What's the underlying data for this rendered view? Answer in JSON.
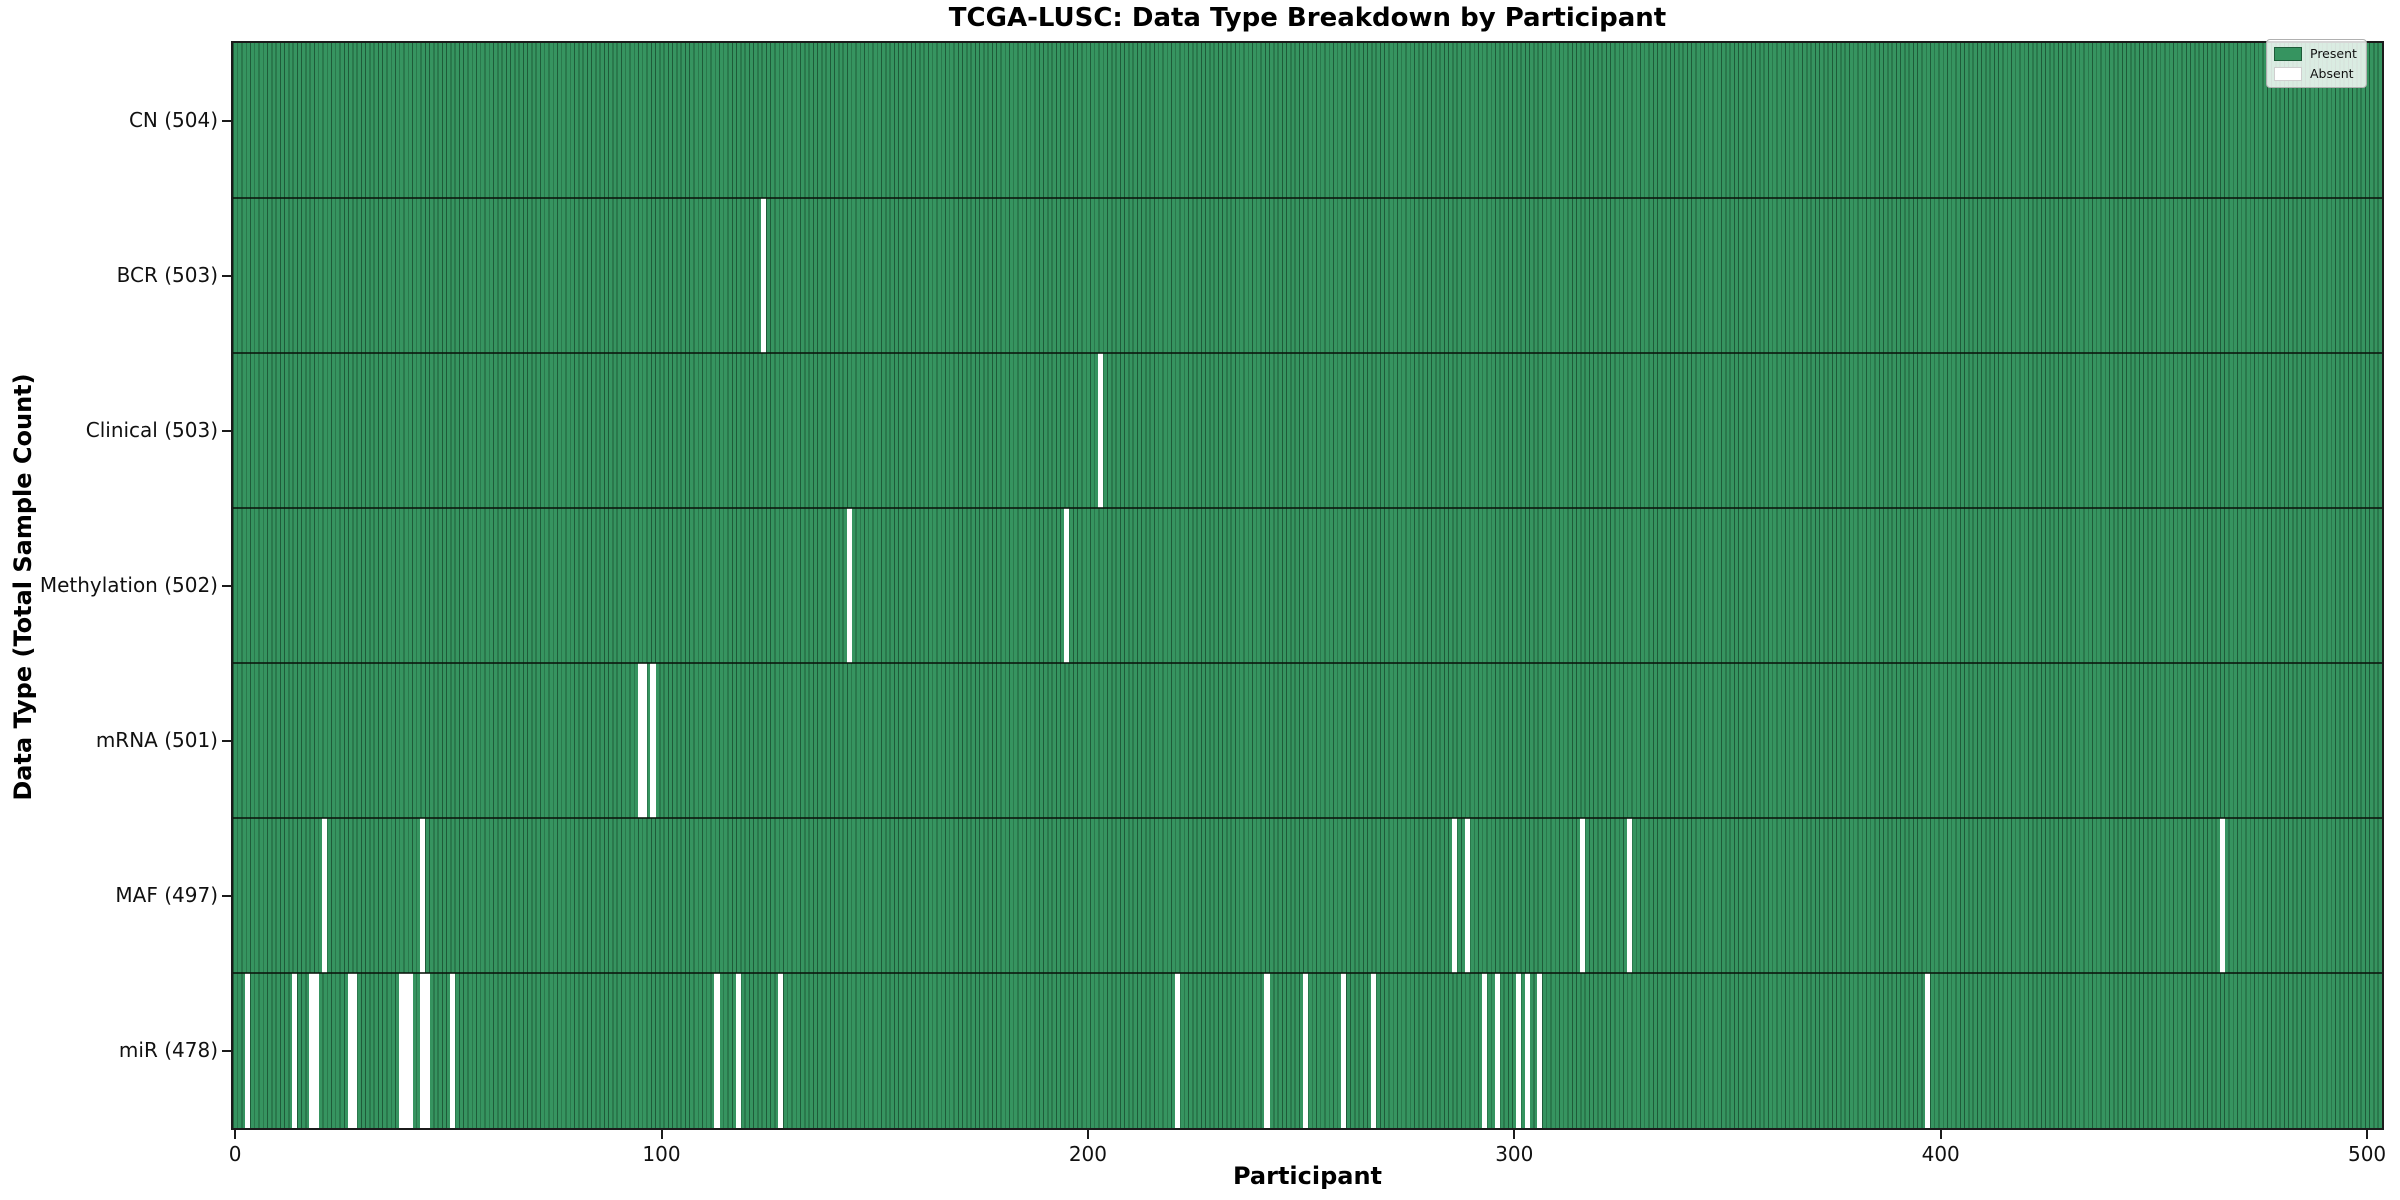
{
  "title": "TCGA-LUSC: Data Type Breakdown by Participant",
  "xlabel": "Participant",
  "ylabel": "Data Type (Total Sample Count)",
  "legend": {
    "present_label": "Present",
    "absent_label": "Absent"
  },
  "colors": {
    "present_fill": "#369460",
    "bar_edge": "#1e5b39",
    "absent": "#ffffff",
    "spine": "#1b1b1b",
    "background": "#ffffff"
  },
  "chart_data": {
    "type": "heatmap",
    "title": "TCGA-LUSC: Data Type Breakdown by Participant",
    "xlabel": "Participant",
    "ylabel": "Data Type (Total Sample Count)",
    "legend_entries": [
      "Present",
      "Absent"
    ],
    "legend_position": "upper right",
    "grid": false,
    "total_participants": 504,
    "x_range": [
      0,
      503
    ],
    "x_ticks": [
      0,
      100,
      200,
      300,
      400,
      500
    ],
    "rows": [
      {
        "id": "cn",
        "label": "CN (504)",
        "data_type": "CN",
        "present_count": 504,
        "absent_participants": []
      },
      {
        "id": "bcr",
        "label": "BCR (503)",
        "data_type": "BCR",
        "present_count": 503,
        "absent_participants": [
          124
        ]
      },
      {
        "id": "clinical",
        "label": "Clinical (503)",
        "data_type": "Clinical",
        "present_count": 503,
        "absent_participants": [
          203
        ]
      },
      {
        "id": "methylation",
        "label": "Methylation (502)",
        "data_type": "Methylation",
        "present_count": 502,
        "absent_participants": [
          144,
          195
        ]
      },
      {
        "id": "mrna",
        "label": "mRNA (501)",
        "data_type": "mRNA",
        "present_count": 501,
        "absent_participants": [
          95,
          96,
          98
        ]
      },
      {
        "id": "maf",
        "label": "MAF (497)",
        "data_type": "MAF",
        "present_count": 497,
        "absent_participants": [
          21,
          44,
          286,
          289,
          316,
          327,
          466
        ]
      },
      {
        "id": "mir",
        "label": "miR (478)",
        "data_type": "miR",
        "present_count": 478,
        "absent_participants": [
          3,
          14,
          18,
          19,
          27,
          28,
          39,
          40,
          41,
          44,
          45,
          51,
          113,
          118,
          128,
          221,
          242,
          251,
          260,
          267,
          293,
          296,
          301,
          303,
          306,
          397
        ]
      }
    ]
  }
}
